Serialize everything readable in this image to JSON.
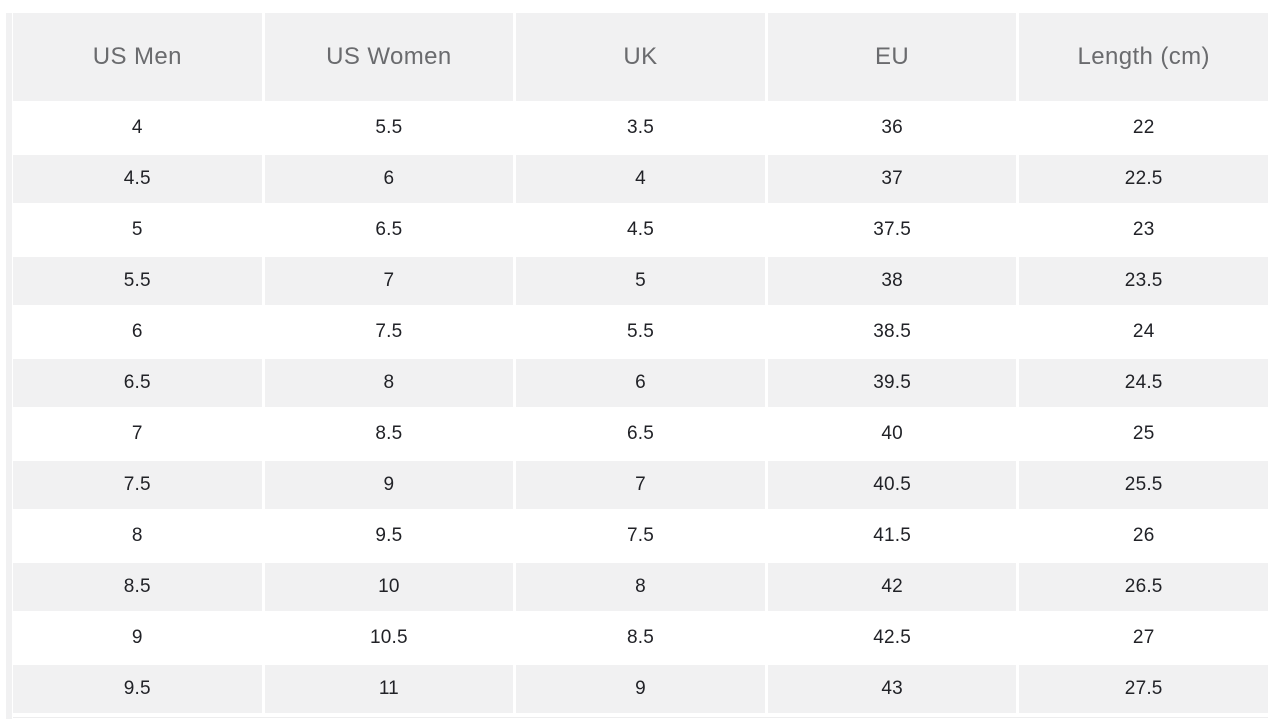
{
  "table": {
    "columns": [
      "US Men",
      "US Women",
      "UK",
      "EU",
      "Length (cm)"
    ],
    "rows": [
      [
        "4",
        "5.5",
        "3.5",
        "36",
        "22"
      ],
      [
        "4.5",
        "6",
        "4",
        "37",
        "22.5"
      ],
      [
        "5",
        "6.5",
        "4.5",
        "37.5",
        "23"
      ],
      [
        "5.5",
        "7",
        "5",
        "38",
        "23.5"
      ],
      [
        "6",
        "7.5",
        "5.5",
        "38.5",
        "24"
      ],
      [
        "6.5",
        "8",
        "6",
        "39.5",
        "24.5"
      ],
      [
        "7",
        "8.5",
        "6.5",
        "40",
        "25"
      ],
      [
        "7.5",
        "9",
        "7",
        "40.5",
        "25.5"
      ],
      [
        "8",
        "9.5",
        "7.5",
        "41.5",
        "26"
      ],
      [
        "8.5",
        "10",
        "8",
        "42",
        "26.5"
      ],
      [
        "9",
        "10.5",
        "8.5",
        "42.5",
        "27"
      ],
      [
        "9.5",
        "11",
        "9",
        "43",
        "27.5"
      ]
    ]
  },
  "chart_data": {
    "type": "table",
    "columns": [
      "US Men",
      "US Women",
      "UK",
      "EU",
      "Length (cm)"
    ],
    "rows": [
      [
        4,
        5.5,
        3.5,
        36,
        22
      ],
      [
        4.5,
        6,
        4,
        37,
        22.5
      ],
      [
        5,
        6.5,
        4.5,
        37.5,
        23
      ],
      [
        5.5,
        7,
        5,
        38,
        23.5
      ],
      [
        6,
        7.5,
        5.5,
        38.5,
        24
      ],
      [
        6.5,
        8,
        6,
        39.5,
        24.5
      ],
      [
        7,
        8.5,
        6.5,
        40,
        25
      ],
      [
        7.5,
        9,
        7,
        40.5,
        25.5
      ],
      [
        8,
        9.5,
        7.5,
        41.5,
        26
      ],
      [
        8.5,
        10,
        8,
        42,
        26.5
      ],
      [
        9,
        10.5,
        8.5,
        42.5,
        27
      ],
      [
        9.5,
        11,
        9,
        43,
        27.5
      ]
    ]
  },
  "colors": {
    "cell_gray": "#f1f1f2",
    "header_text": "#6a6b6e",
    "body_text": "#212227",
    "background": "#ffffff"
  }
}
